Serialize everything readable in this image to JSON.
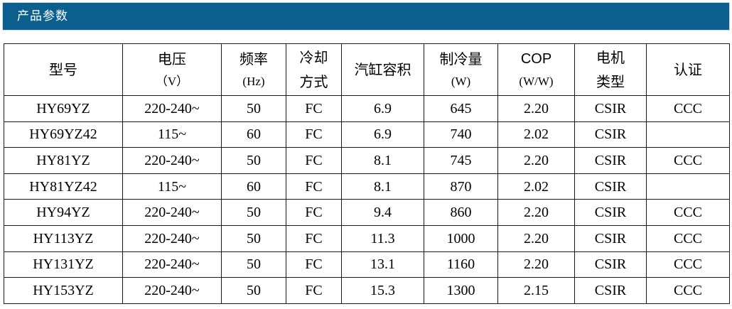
{
  "header": {
    "title": "产品参数"
  },
  "table": {
    "columns": [
      {
        "main": "型号",
        "unit": ""
      },
      {
        "main": "电压",
        "unit": "（V）"
      },
      {
        "main": "频率",
        "unit": "(Hz)"
      },
      {
        "main": "冷却",
        "main2": "方式"
      },
      {
        "main": "汽缸容积",
        "unit": ""
      },
      {
        "main": "制冷量",
        "unit": "(W)"
      },
      {
        "main": "COP",
        "unit": "(W/W)"
      },
      {
        "main": "电机",
        "main2": "类型"
      },
      {
        "main": "认证",
        "unit": ""
      }
    ],
    "rows": [
      [
        "HY69YZ",
        "220-240~",
        "50",
        "FC",
        "6.9",
        "645",
        "2.20",
        "CSIR",
        "CCC"
      ],
      [
        "HY69YZ42",
        "115~",
        "60",
        "FC",
        "6.9",
        "740",
        "2.02",
        "CSIR",
        ""
      ],
      [
        "HY81YZ",
        "220-240~",
        "50",
        "FC",
        "8.1",
        "745",
        "2.20",
        "CSIR",
        "CCC"
      ],
      [
        "HY81YZ42",
        "115~",
        "60",
        "FC",
        "8.1",
        "870",
        "2.02",
        "CSIR",
        ""
      ],
      [
        "HY94YZ",
        "220-240~",
        "50",
        "FC",
        "9.4",
        "860",
        "2.20",
        "CSIR",
        "CCC"
      ],
      [
        "HY113YZ",
        "220-240~",
        "50",
        "FC",
        "11.3",
        "1000",
        "2.20",
        "CSIR",
        "CCC"
      ],
      [
        "HY131YZ",
        "220-240~",
        "50",
        "FC",
        "13.1",
        "1160",
        "2.20",
        "CSIR",
        "CCC"
      ],
      [
        "HY153YZ",
        "220-240~",
        "50",
        "FC",
        "15.3",
        "1300",
        "2.15",
        "CSIR",
        "CCC"
      ]
    ]
  },
  "colors": {
    "title_bar": "#0a5f8e",
    "title_text": "#ffffff",
    "border": "#1a1a1a"
  }
}
